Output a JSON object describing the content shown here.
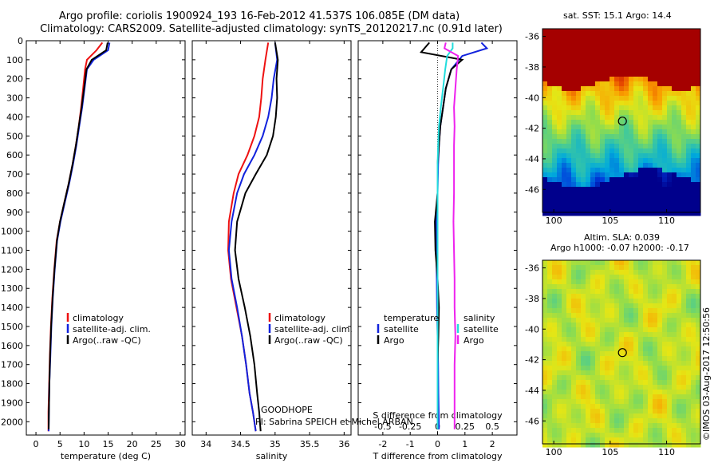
{
  "header": {
    "title_line1": "Argo profile: coriolis 1900924_193 16-Feb-2012 41.537S 106.085E (DM data)",
    "title_line2": "Climatology: CARS2009. Satellite-adjusted climatology: synTS_20120217.nc (0.91d later)"
  },
  "side_label": "©IMOS 03-Aug-2017 12:50:56",
  "colors": {
    "climatology": "#ee1111",
    "satellite": "#1122dd",
    "argo": "#000000",
    "sat_salinity": "#22dddd",
    "argo_salinity": "#ee22ee",
    "marker": "#000000"
  },
  "chart_data": [
    {
      "type": "line",
      "panel": "temperature",
      "xlabel": "temperature (deg C)",
      "ylabel": "",
      "xlim": [
        -2,
        31
      ],
      "ylim": [
        2070,
        0
      ],
      "xticks": [
        0,
        5,
        10,
        15,
        20,
        25,
        30
      ],
      "yticks": [
        0,
        100,
        200,
        300,
        400,
        500,
        600,
        700,
        800,
        900,
        1000,
        1100,
        1200,
        1300,
        1400,
        1500,
        1600,
        1700,
        1800,
        1900,
        2000
      ],
      "legend": [
        "climatology",
        "satellite-adj. clim.",
        "Argo(..raw -QC)"
      ],
      "series": [
        {
          "name": "climatology",
          "color": "#ee1111",
          "x": [
            13.8,
            12.6,
            10.6,
            10.2,
            9.8,
            9.4,
            8.9,
            8.3,
            7.6,
            6.8,
            5.9,
            5.0,
            4.3,
            3.8,
            3.4,
            3.1,
            2.9,
            2.75,
            2.6,
            2.6
          ],
          "y": [
            10,
            50,
            100,
            150,
            250,
            350,
            450,
            550,
            650,
            750,
            850,
            950,
            1050,
            1200,
            1350,
            1500,
            1650,
            1800,
            1950,
            2050
          ]
        },
        {
          "name": "satellite-adj. clim.",
          "color": "#1122dd",
          "x": [
            15.3,
            15.0,
            12.0,
            10.6,
            10.1,
            9.6,
            9.0,
            8.4,
            7.7,
            6.9,
            6.0,
            5.1,
            4.4,
            3.9,
            3.5,
            3.2,
            3.0,
            2.8,
            2.7,
            2.65
          ],
          "y": [
            10,
            50,
            100,
            150,
            250,
            350,
            450,
            550,
            650,
            750,
            850,
            950,
            1050,
            1200,
            1350,
            1500,
            1650,
            1800,
            1950,
            2050
          ]
        },
        {
          "name": "Argo(..raw -QC)",
          "color": "#000000",
          "x": [
            14.9,
            14.6,
            11.6,
            10.5,
            10.0,
            9.5,
            8.9,
            8.3,
            7.6,
            6.8,
            5.9,
            5.0,
            4.35,
            3.85,
            3.45,
            3.15,
            2.95,
            2.8,
            2.7,
            2.65
          ],
          "y": [
            10,
            50,
            100,
            150,
            250,
            350,
            450,
            550,
            650,
            750,
            850,
            950,
            1050,
            1200,
            1350,
            1500,
            1650,
            1800,
            1950,
            2040
          ]
        }
      ]
    },
    {
      "type": "line",
      "panel": "salinity",
      "xlabel": "salinity",
      "ylabel": "",
      "xlim": [
        33.8,
        36.1
      ],
      "ylim": [
        2070,
        0
      ],
      "xticks": [
        34,
        34.5,
        35,
        35.5,
        36
      ],
      "legend": [
        "climatology",
        "satellite-adj. clim.",
        "Argo(..raw -QC)"
      ],
      "annotation_line1": "GOODHOPE",
      "annotation_line2": "PI: Sabrina SPEICH et Michel ARBAN",
      "series": [
        {
          "name": "climatology",
          "color": "#ee1111",
          "x": [
            34.9,
            34.86,
            34.82,
            34.8,
            34.77,
            34.7,
            34.6,
            34.47,
            34.4,
            34.33,
            34.32,
            34.36,
            34.44,
            34.52,
            34.58,
            34.63,
            34.68,
            34.72
          ],
          "y": [
            10,
            100,
            200,
            300,
            400,
            500,
            600,
            700,
            800,
            950,
            1100,
            1250,
            1400,
            1550,
            1700,
            1850,
            1950,
            2050
          ]
        },
        {
          "name": "satellite-adj. clim.",
          "color": "#1122dd",
          "x": [
            35.0,
            35.03,
            34.98,
            34.95,
            34.9,
            34.82,
            34.7,
            34.55,
            34.45,
            34.37,
            34.33,
            34.37,
            34.45,
            34.52,
            34.58,
            34.63,
            34.68,
            34.72
          ],
          "y": [
            10,
            100,
            200,
            300,
            400,
            500,
            600,
            700,
            800,
            950,
            1100,
            1250,
            1400,
            1550,
            1700,
            1850,
            1950,
            2050
          ]
        },
        {
          "name": "Argo(..raw -QC)",
          "color": "#000000",
          "x": [
            35.0,
            35.04,
            35.02,
            35.03,
            35.01,
            34.97,
            34.88,
            34.72,
            34.57,
            34.45,
            34.42,
            34.47,
            34.56,
            34.64,
            34.7,
            34.74,
            34.77,
            34.79
          ],
          "y": [
            10,
            100,
            200,
            300,
            400,
            500,
            600,
            700,
            800,
            950,
            1100,
            1250,
            1400,
            1550,
            1700,
            1850,
            1950,
            2050
          ]
        }
      ]
    },
    {
      "type": "line",
      "panel": "difference",
      "xlabel": "T difference from climatology",
      "xlabel_top": "S difference from climatology",
      "xlim": [
        -2.9,
        2.9
      ],
      "ylim": [
        2070,
        0
      ],
      "xticks": [
        -2,
        -1,
        0,
        1,
        2
      ],
      "xticks_s": [
        "-0.5",
        "-0.25",
        "0",
        "0.25",
        "0.5"
      ],
      "legend_headers": [
        "temperature",
        "salinity"
      ],
      "legend": [
        "satellite",
        "Argo",
        "satellite",
        "Argo"
      ],
      "series": [
        {
          "name": "temperature satellite",
          "color": "#1122dd",
          "x": [
            1.6,
            1.8,
            0.9,
            0.5,
            0.3,
            0.2,
            0.1,
            0.05,
            0.02,
            0.0,
            -0.05,
            -0.05,
            -0.03,
            -0.02,
            0.0,
            0.02,
            0.03,
            0.05
          ],
          "y": [
            10,
            40,
            80,
            150,
            250,
            350,
            450,
            550,
            650,
            800,
            950,
            1100,
            1250,
            1400,
            1550,
            1700,
            1850,
            2040
          ]
        },
        {
          "name": "temperature Argo",
          "color": "#000000",
          "x": [
            -0.3,
            -0.6,
            0.9,
            0.5,
            0.3,
            0.2,
            0.1,
            0.05,
            0.0,
            0.0,
            -0.1,
            -0.08,
            0.0,
            0.05,
            0.03,
            0.0,
            0.0,
            0.0
          ],
          "y": [
            10,
            60,
            100,
            150,
            250,
            350,
            450,
            550,
            650,
            800,
            950,
            1100,
            1250,
            1400,
            1550,
            1700,
            1850,
            2040
          ]
        },
        {
          "name": "salinity satellite",
          "color": "#22dddd",
          "x": [
            0.55,
            0.55,
            0.35,
            0.28,
            0.2,
            0.12,
            0.05,
            0.02,
            0.0,
            0.0,
            0.0,
            0.0,
            0.0,
            0.0,
            0.0,
            0.0,
            0.0,
            0.0
          ],
          "y": [
            10,
            40,
            80,
            150,
            250,
            350,
            450,
            550,
            650,
            800,
            950,
            1100,
            1250,
            1400,
            1550,
            1700,
            1850,
            2040
          ]
        },
        {
          "name": "salinity Argo",
          "color": "#ee22ee",
          "x": [
            0.3,
            0.25,
            0.75,
            0.7,
            0.65,
            0.6,
            0.62,
            0.6,
            0.6,
            0.6,
            0.58,
            0.6,
            0.62,
            0.62,
            0.65,
            0.62,
            0.62,
            0.62
          ],
          "y": [
            10,
            40,
            80,
            150,
            250,
            350,
            450,
            550,
            650,
            800,
            950,
            1100,
            1250,
            1400,
            1550,
            1700,
            1850,
            2040
          ]
        }
      ]
    },
    {
      "type": "heatmap",
      "panel": "sst-map",
      "title": "sat. SST: 15.1 Argo: 14.4",
      "xlim": [
        99,
        113
      ],
      "ylim": [
        -47.5,
        -35.5
      ],
      "xticks": [
        100,
        105,
        110
      ],
      "yticks": [
        -36,
        -38,
        -40,
        -42,
        -44,
        -46
      ],
      "marker": {
        "x": 106.085,
        "y": -41.537
      }
    },
    {
      "type": "heatmap",
      "panel": "sla-map",
      "title": "Altim. SLA: 0.039",
      "subtitle": "Argo h1000: -0.07 h2000: -0.17",
      "xlim": [
        99,
        113
      ],
      "ylim": [
        -47.5,
        -35.5
      ],
      "xticks": [
        100,
        105,
        110
      ],
      "yticks": [
        -36,
        -38,
        -40,
        -42,
        -44,
        -46
      ],
      "marker": {
        "x": 106.085,
        "y": -41.537
      }
    }
  ]
}
